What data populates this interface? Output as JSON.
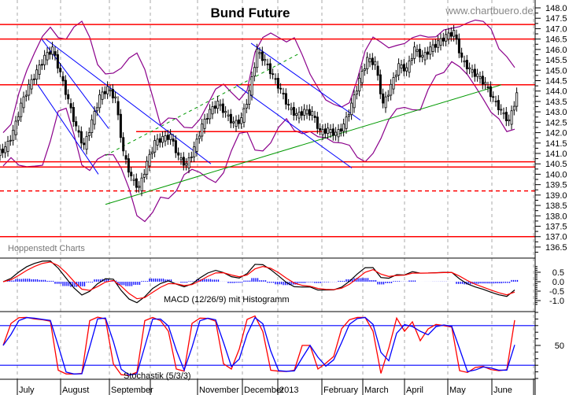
{
  "header": {
    "title": "Bund Future",
    "website": "www.chartbuero.de",
    "source": "Hoppenstedt Charts"
  },
  "colors": {
    "candle": "#000000",
    "bollinger": "#8b008b",
    "support_resistance": "#ff0000",
    "trend_down": "#0000ff",
    "trend_up": "#009900",
    "macd": "#000000",
    "macd_signal": "#ff0000",
    "histogram": "#0000ff",
    "stoch_k": "#ff0000",
    "stoch_d": "#0000ff"
  },
  "chart_data": [
    {
      "type": "candlestick",
      "title": "Bund Future",
      "ylim": [
        136.5,
        148.0
      ],
      "y_ticks": [
        "148.0",
        "147.5",
        "147.0",
        "146.5",
        "146.0",
        "145.5",
        "145.0",
        "144.5",
        "144.0",
        "143.5",
        "143.0",
        "142.5",
        "142.0",
        "141.5",
        "141.0",
        "140.5",
        "140.0",
        "139.5",
        "139.0",
        "138.5",
        "138.0",
        "137.5",
        "137.0",
        "136.5"
      ],
      "x_range": [
        0,
        68
      ],
      "month_ticks": [
        {
          "label": "July",
          "x": 2.2
        },
        {
          "label": "August",
          "x": 7.7
        },
        {
          "label": "September",
          "x": 13.9
        },
        {
          "label": "",
          "x": 19.1
        },
        {
          "label": "November",
          "x": 25.1
        },
        {
          "label": "December",
          "x": 30.8
        },
        {
          "label": "2013",
          "x": 35.3
        },
        {
          "label": "February",
          "x": 40.9
        },
        {
          "label": "March",
          "x": 46.1
        },
        {
          "label": "April",
          "x": 51.4
        },
        {
          "label": "May",
          "x": 56.9
        },
        {
          "label": "June",
          "x": 62.5
        },
        {
          "label": "",
          "x": 67.8
        }
      ],
      "closes": [
        141.2,
        142.0,
        143.3,
        144.2,
        144.9,
        145.6,
        146.0,
        144.8,
        143.5,
        142.2,
        141.3,
        142.5,
        143.7,
        144.1,
        143.6,
        141.0,
        139.8,
        139.3,
        140.5,
        141.5,
        141.7,
        141.8,
        140.8,
        140.4,
        141.2,
        142.3,
        143.0,
        143.4,
        142.9,
        142.4,
        142.6,
        143.9,
        145.9,
        145.4,
        144.7,
        144.0,
        143.2,
        142.8,
        143.0,
        142.9,
        142.0,
        142.1,
        141.9,
        142.3,
        143.3,
        144.5,
        145.5,
        145.3,
        143.3,
        144.2,
        145.2,
        145.0,
        146.0,
        145.6,
        146.0,
        146.3,
        146.6,
        146.8,
        145.5,
        145.0,
        144.7,
        144.3,
        143.6,
        143.0,
        142.5,
        143.8
      ],
      "horizontal_lines": [
        {
          "price": 147.2,
          "style": "solid"
        },
        {
          "price": 146.5,
          "style": "solid"
        },
        {
          "price": 144.3,
          "style": "solid"
        },
        {
          "price": 140.6,
          "style": "solid"
        },
        {
          "price": 140.35,
          "style": "solid"
        },
        {
          "price": 139.2,
          "style": "dashed"
        },
        {
          "price": 137.0,
          "style": "solid"
        },
        {
          "price": 142.05,
          "style": "solid",
          "from": 17.3,
          "to": 41.3
        }
      ],
      "trend_lines": [
        {
          "color": "trend_up",
          "style": "solid",
          "from": [
            13.4,
            138.55
          ],
          "to": [
            63.7,
            144.3
          ]
        },
        {
          "color": "trend_up",
          "style": "dashed",
          "from": [
            13.4,
            140.9
          ],
          "to": [
            38.0,
            145.8
          ]
        },
        {
          "color": "trend_down",
          "style": "solid",
          "from": [
            5.3,
            146.5
          ],
          "to": [
            13.8,
            142.2
          ]
        },
        {
          "color": "trend_down",
          "style": "solid",
          "from": [
            5.8,
            146.5
          ],
          "to": [
            26.8,
            140.5
          ]
        },
        {
          "color": "trend_down",
          "style": "solid",
          "from": [
            4.8,
            144.3
          ],
          "to": [
            12.5,
            140.0
          ]
        },
        {
          "color": "trend_down",
          "style": "solid",
          "from": [
            31.9,
            146.3
          ],
          "to": [
            45.8,
            142.6
          ]
        },
        {
          "color": "trend_down",
          "style": "solid",
          "from": [
            30.0,
            144.3
          ],
          "to": [
            44.7,
            140.3
          ]
        }
      ]
    },
    {
      "type": "line",
      "label": "MACD (12/26/9) mit Histogramm",
      "ylim": [
        -1.0,
        0.5
      ],
      "y_ticks": [
        "0.5",
        "0.0",
        "-0.5",
        "-1.0"
      ]
    },
    {
      "type": "line",
      "label": "Stochastik (5/3/3)",
      "ylim": [
        0,
        100
      ],
      "y_ticks": [
        "50"
      ],
      "levels": [
        80,
        20
      ]
    }
  ]
}
